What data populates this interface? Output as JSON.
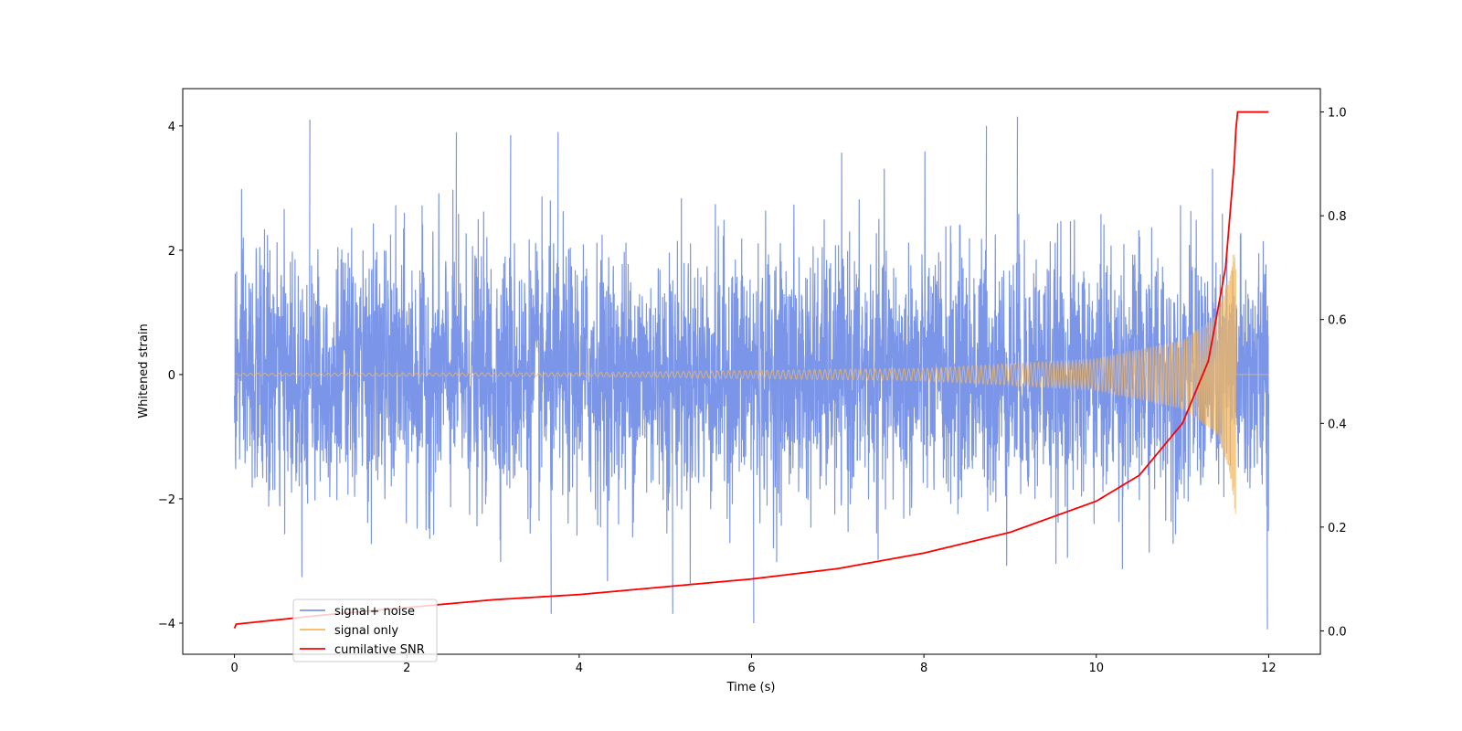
{
  "chart_data": {
    "type": "line",
    "title": "",
    "xlabel": "Time (s)",
    "ylabel": "Whitened strain",
    "y2label": "",
    "xlim": [
      -0.6,
      12.6
    ],
    "ylim": [
      -4.5,
      4.6
    ],
    "y2lim": [
      -0.045,
      1.045
    ],
    "x_ticks": [
      0,
      2,
      4,
      6,
      8,
      10,
      12
    ],
    "y_ticks": [
      -4,
      -2,
      0,
      2,
      4
    ],
    "y2_ticks": [
      0.0,
      0.2,
      0.4,
      0.6,
      0.8,
      1.0
    ],
    "x_tick_labels": [
      "0",
      "2",
      "4",
      "6",
      "8",
      "10",
      "12"
    ],
    "y_tick_labels": [
      "−4",
      "−2",
      "0",
      "2",
      "4"
    ],
    "y2_tick_labels": [
      "0.0",
      "0.2",
      "0.4",
      "0.6",
      "0.8",
      "1.0"
    ],
    "grid": false,
    "legend_placement": "lower-left",
    "merger_time": 11.62,
    "series": [
      {
        "name": "signal+ noise",
        "axis": "left",
        "color": "#7b96e9",
        "description": "whitened strain noise, approx. range -4.1 to 4.2 over t = 0 to 12 s",
        "noise_std": 1.0,
        "peaks": [
          [
            0.87,
            4.1
          ],
          [
            9.08,
            4.15
          ],
          [
            8.72,
            4.0
          ],
          [
            2.57,
            3.9
          ],
          [
            3.2,
            3.85
          ],
          [
            3.75,
            3.9
          ],
          [
            6.02,
            -4.0
          ],
          [
            11.98,
            -4.1
          ],
          [
            5.08,
            -3.85
          ],
          [
            3.67,
            -3.85
          ]
        ]
      },
      {
        "name": "signal only",
        "axis": "left",
        "color": "#f5b85e",
        "description": "chirp with amplitude growing from about 0.02 to about 2.3 near t = 11.6 s, then zero",
        "amplitude_points": [
          [
            0,
            0.02
          ],
          [
            4,
            0.03
          ],
          [
            8,
            0.1
          ],
          [
            10,
            0.25
          ],
          [
            11,
            0.55
          ],
          [
            11.4,
            0.95
          ],
          [
            11.55,
            1.6
          ],
          [
            11.62,
            2.3
          ]
        ]
      },
      {
        "name": "cumilative SNR",
        "axis": "right",
        "color": "#ff0000",
        "points": [
          [
            0,
            0.005
          ],
          [
            0.02,
            0.013
          ],
          [
            1,
            0.03
          ],
          [
            2,
            0.045
          ],
          [
            3,
            0.06
          ],
          [
            4,
            0.07
          ],
          [
            5,
            0.085
          ],
          [
            6,
            0.1
          ],
          [
            7,
            0.12
          ],
          [
            8,
            0.15
          ],
          [
            9,
            0.19
          ],
          [
            10,
            0.25
          ],
          [
            10.5,
            0.3
          ],
          [
            11,
            0.4
          ],
          [
            11.3,
            0.52
          ],
          [
            11.5,
            0.7
          ],
          [
            11.6,
            0.9
          ],
          [
            11.63,
            1.0
          ],
          [
            12,
            1.0
          ]
        ]
      }
    ]
  }
}
